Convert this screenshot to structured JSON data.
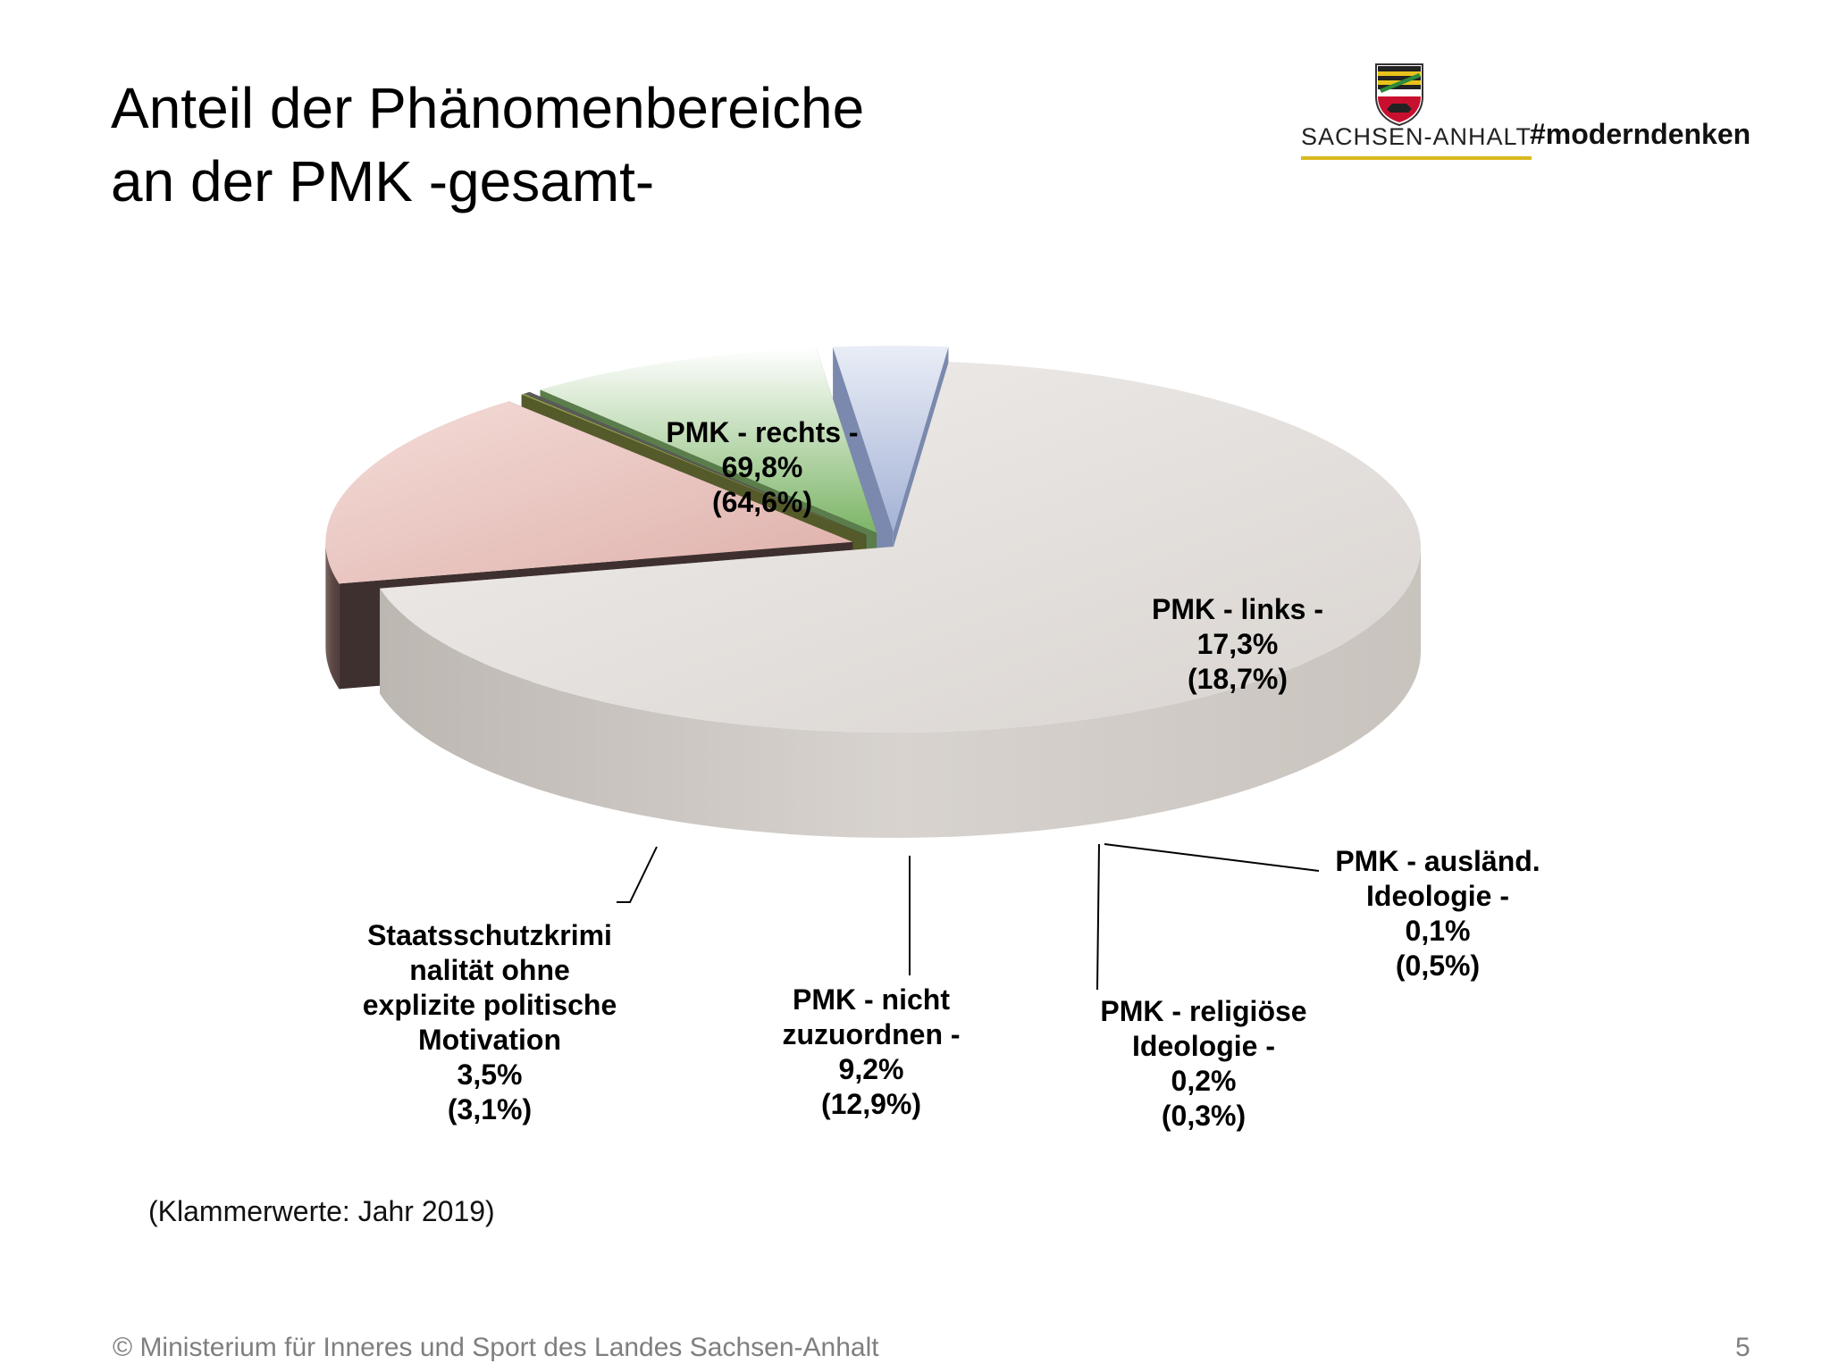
{
  "slide": {
    "title_line1": "Anteil der Phänomenbereiche",
    "title_line2": "an der PMK -gesamt-",
    "logo_text": "SACHSEN-ANHALT",
    "hashtag": "#moderndenken",
    "footnote": "(Klammerwerte: Jahr 2019)",
    "footer": "© Ministerium für Inneres und Sport des Landes Sachsen-Anhalt",
    "page_number": "5",
    "icons": [
      "sachsen-anhalt-crest-icon"
    ]
  },
  "chart_data": {
    "type": "pie",
    "title": "",
    "style": "3d-exploded",
    "categories": [
      "PMK - rechts -",
      "PMK - links -",
      "PMK - ausländ. Ideologie -",
      "PMK - religiöse Ideologie -",
      "PMK - nicht zuzuordnen -",
      "Staatsschutzkriminalität ohne explizite politische Motivation"
    ],
    "series": [
      {
        "name": "",
        "values": [
          69.8,
          17.3,
          0.1,
          0.2,
          9.2,
          3.5
        ]
      },
      {
        "name": "2019",
        "values": [
          64.6,
          18.7,
          0.5,
          0.3,
          12.9,
          3.1
        ]
      }
    ],
    "colors": [
      "#e6e2df",
      "#ecc9c4",
      "#8f9a4e",
      "#4a4a4a",
      "#7fb069",
      "#a9b7d8"
    ],
    "labels": [
      {
        "lines": [
          "PMK - rechts -",
          "69,8%",
          "(64,6%)"
        ]
      },
      {
        "lines": [
          "PMK - links -",
          "17,3%",
          "(18,7%)"
        ]
      },
      {
        "lines": [
          "PMK - ausländ.",
          "Ideologie -",
          "0,1%",
          "(0,5%)"
        ]
      },
      {
        "lines": [
          "PMK - religiöse",
          "Ideologie -",
          "0,2%",
          "(0,3%)"
        ]
      },
      {
        "lines": [
          "PMK - nicht",
          "zuzuordnen -",
          "9,2%",
          "(12,9%)"
        ]
      },
      {
        "lines": [
          "Staatsschutzkrimi",
          "nalität ohne",
          "explizite politische",
          "Motivation",
          "3,5%",
          "(3,1%)"
        ]
      }
    ]
  }
}
